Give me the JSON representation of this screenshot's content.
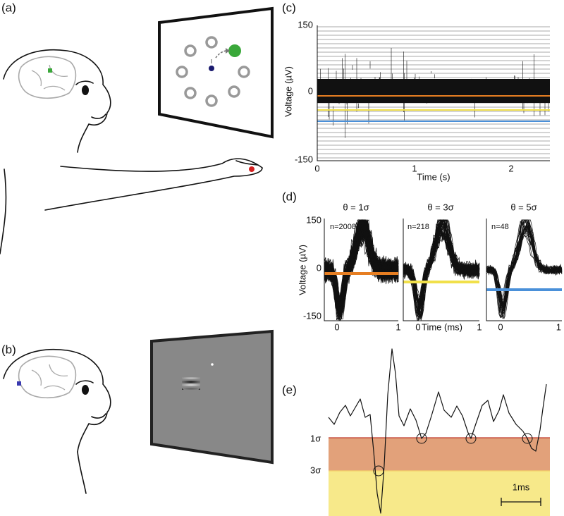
{
  "panels": {
    "a": {
      "label": "(a)"
    },
    "b": {
      "label": "(b)"
    },
    "c": {
      "label": "(c)",
      "y_axis_title": "Voltage (µV)",
      "x_axis_title": "Time (s)",
      "y_ticks": [
        "150",
        "0",
        "-150"
      ],
      "x_ticks": [
        "0",
        "1",
        "2"
      ]
    },
    "d": {
      "label": "(d)",
      "y_axis_title": "Voltage (µV)",
      "x_axis_title": "Time (ms)",
      "y_ticks": [
        "150",
        "0",
        "-150"
      ],
      "subplots": [
        {
          "title": "θ = 1σ",
          "count": "n=2008",
          "x_ticks": [
            "0",
            "1"
          ]
        },
        {
          "title": "θ = 3σ",
          "count": "n=218",
          "x_ticks": [
            "0",
            "1"
          ]
        },
        {
          "title": "θ = 5σ",
          "count": "n=48",
          "x_ticks": [
            "0",
            "1"
          ]
        }
      ]
    },
    "e": {
      "label": "(e)",
      "levels": [
        "1σ",
        "3σ"
      ],
      "scale_bar": "1ms"
    }
  }
}
